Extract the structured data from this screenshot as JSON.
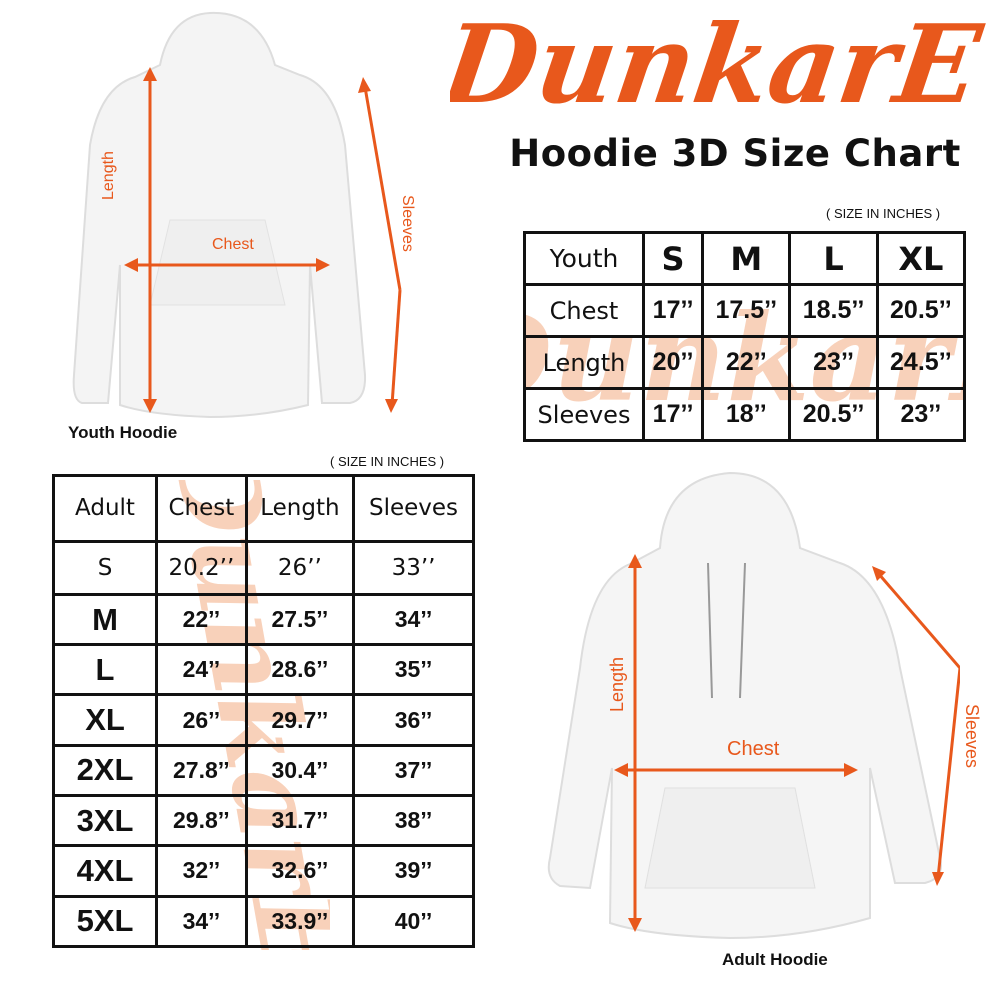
{
  "brand": {
    "logo_text": "DunkarE",
    "accent_color": "#e8581c",
    "watermark_color": "#f7c6a9"
  },
  "title": "Hoodie 3D Size Chart",
  "youth": {
    "unit_note": "( SIZE IN INCHES )",
    "caption": "Youth Hoodie",
    "measure_labels": {
      "length": "Length",
      "chest": "Chest",
      "sleeves": "Sleeves"
    },
    "table": {
      "headers": [
        "Youth",
        "S",
        "M",
        "L",
        "XL"
      ],
      "rows": [
        {
          "label": "Chest",
          "values": [
            "17’’",
            "17.5’’",
            "18.5’’",
            "20.5’’"
          ]
        },
        {
          "label": "Length",
          "values": [
            "20’’",
            "22’’",
            "23’’",
            "24.5’’"
          ]
        },
        {
          "label": "Sleeves",
          "values": [
            "17’’",
            "18’’",
            "20.5’’",
            "23’’"
          ]
        }
      ]
    }
  },
  "adult": {
    "unit_note": "( SIZE IN INCHES )",
    "caption": "Adult Hoodie",
    "measure_labels": {
      "length": "Length",
      "chest": "Chest",
      "sleeves": "Sleeves"
    },
    "table": {
      "headers": [
        "Adult",
        "Chest",
        "Length",
        "Sleeves"
      ],
      "rows": [
        {
          "size": "S",
          "values": [
            "20.2’’",
            "26’’",
            "33’’"
          ]
        },
        {
          "size": "M",
          "values": [
            "22’’",
            "27.5’’",
            "34’’"
          ]
        },
        {
          "size": "L",
          "values": [
            "24’’",
            "28.6’’",
            "35’’"
          ]
        },
        {
          "size": "XL",
          "values": [
            "26’’",
            "29.7’’",
            "36’’"
          ]
        },
        {
          "size": "2XL",
          "values": [
            "27.8’’",
            "30.4’’",
            "37’’"
          ]
        },
        {
          "size": "3XL",
          "values": [
            "29.8’’",
            "31.7’’",
            "38’’"
          ]
        },
        {
          "size": "4XL",
          "values": [
            "32’’",
            "32.6’’",
            "39’’"
          ]
        },
        {
          "size": "5XL",
          "values": [
            "34’’",
            "33.9’’",
            "40’’"
          ]
        }
      ]
    }
  }
}
